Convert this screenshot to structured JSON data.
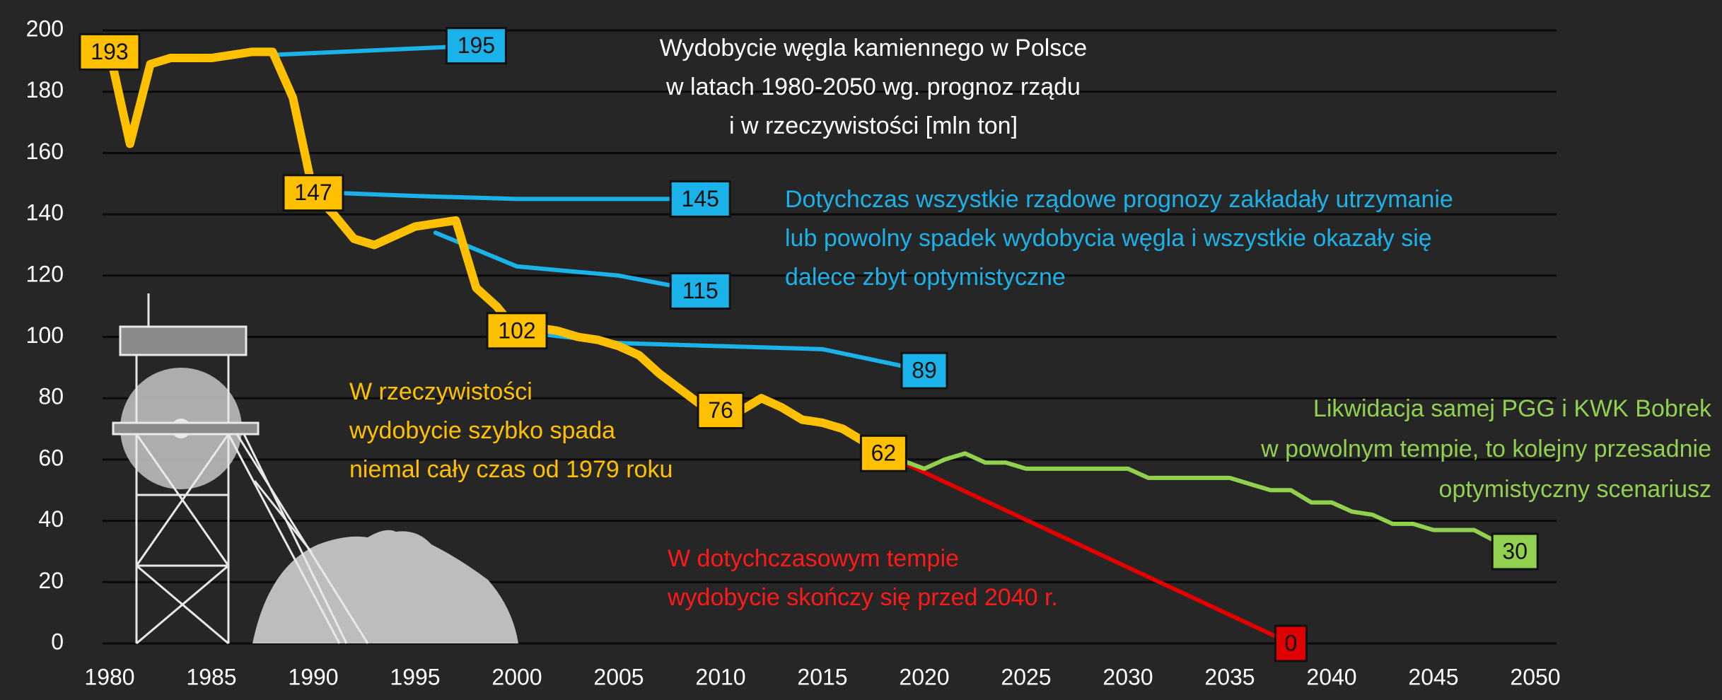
{
  "chart_data": {
    "type": "line",
    "xlim": [
      1980,
      2050
    ],
    "xticks": [
      1980,
      1985,
      1990,
      1995,
      2000,
      2005,
      2010,
      2015,
      2020,
      2025,
      2030,
      2035,
      2040,
      2045,
      2050
    ],
    "ylim": [
      0,
      200
    ],
    "yticks": [
      0,
      20,
      40,
      60,
      80,
      100,
      120,
      140,
      160,
      180,
      200
    ],
    "grid": true,
    "annotations": [
      {
        "lines": [
          "Wydobycie węgla kamiennego w Polsce",
          "w latach 1980-2050 wg. prognoz rządu",
          "i w rzeczywistości [mln ton]"
        ],
        "color": "#ffffff"
      },
      {
        "lines": [
          "Dotychczas wszystkie rządowe prognozy zakładały utrzymanie",
          "lub powolny spadek wydobycia węgla i wszystkie okazały się",
          "dalece zbyt optymistyczne"
        ],
        "color": "#1ab2e8"
      },
      {
        "lines": [
          "W rzeczywistości",
          "wydobycie szybko spada",
          "niemal cały czas od 1979 roku"
        ],
        "color": "#ffc000"
      },
      {
        "lines": [
          "W dotychczasowym tempie",
          "wydobycie skończy się przed 2040 r."
        ],
        "color": "#ff1a1a"
      },
      {
        "lines": [
          "Likwidacja samej PGG i KWK Bobrek",
          "w powolnym tempie, to kolejny przesadnie",
          "optymistyczny scenariusz"
        ],
        "color": "#92d050"
      }
    ],
    "series": [
      {
        "color": "#1ab2e8",
        "x": [
          1988,
          1998
        ],
        "values": [
          192,
          195
        ],
        "value_labels": [
          null,
          "195"
        ]
      },
      {
        "color": "#1ab2e8",
        "x": [
          1991,
          1995,
          2000,
          2009
        ],
        "values": [
          147,
          146,
          145,
          145
        ],
        "value_labels": [
          null,
          null,
          null,
          "145"
        ]
      },
      {
        "color": "#1ab2e8",
        "x": [
          1996,
          2000,
          2005,
          2009
        ],
        "values": [
          134,
          123,
          120,
          115
        ],
        "value_labels": [
          null,
          null,
          null,
          "115"
        ]
      },
      {
        "color": "#1ab2e8",
        "x": [
          2001,
          2005,
          2010,
          2015,
          2020
        ],
        "values": [
          101,
          98,
          97,
          96,
          89
        ],
        "value_labels": [
          null,
          null,
          null,
          null,
          "89"
        ]
      },
      {
        "color": "#e00000",
        "x": [
          2018,
          2038
        ],
        "values": [
          62,
          0
        ],
        "value_labels": [
          null,
          "0"
        ]
      },
      {
        "color": "#92d050",
        "x": [
          2018,
          2020,
          2021,
          2022,
          2023,
          2024,
          2025,
          2030,
          2031,
          2035,
          2036,
          2037,
          2038,
          2039,
          2040,
          2041,
          2042,
          2043,
          2044,
          2045,
          2047,
          2049
        ],
        "values": [
          62,
          57,
          60,
          62,
          59,
          59,
          57,
          57,
          54,
          54,
          52,
          50,
          50,
          46,
          46,
          43,
          42,
          39,
          39,
          37,
          37,
          30
        ],
        "value_labels": [
          null,
          null,
          null,
          null,
          null,
          null,
          null,
          null,
          null,
          null,
          null,
          null,
          null,
          null,
          null,
          null,
          null,
          null,
          null,
          null,
          null,
          "30"
        ]
      },
      {
        "color": "#ffc000",
        "x": [
          1980,
          1981,
          1982,
          1983,
          1984,
          1985,
          1986,
          1987,
          1988,
          1989,
          1990,
          1991,
          1992,
          1993,
          1994,
          1995,
          1996,
          1997,
          1998,
          1999,
          2000,
          2001,
          2002,
          2003,
          2004,
          2005,
          2006,
          2007,
          2008,
          2009,
          2010,
          2011,
          2012,
          2013,
          2014,
          2015,
          2016,
          2017,
          2018
        ],
        "values": [
          193,
          163,
          189,
          191,
          191,
          191,
          192,
          193,
          193,
          178,
          147,
          140,
          132,
          130,
          133,
          136,
          137,
          138,
          116,
          110,
          102,
          103,
          102,
          100,
          99,
          97,
          94,
          88,
          83,
          78,
          76,
          76,
          80,
          77,
          73,
          72,
          70,
          66,
          62
        ],
        "value_labels": [
          "193",
          null,
          null,
          null,
          null,
          null,
          null,
          null,
          null,
          null,
          "147",
          null,
          null,
          null,
          null,
          null,
          null,
          null,
          null,
          null,
          "102",
          null,
          null,
          null,
          null,
          null,
          null,
          null,
          null,
          null,
          "76",
          null,
          null,
          null,
          null,
          null,
          null,
          null,
          "62"
        ]
      }
    ]
  }
}
